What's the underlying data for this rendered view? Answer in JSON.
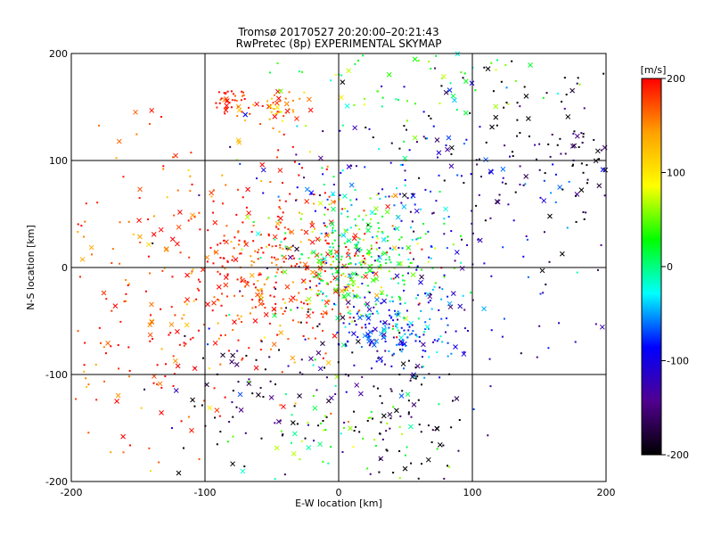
{
  "chart_data": {
    "type": "scatter",
    "title": "Tromsø 20170527 20:20:00–20:21:43",
    "subtitle": "RwPretec (8p) EXPERIMENTAL SKYMAP",
    "xlabel": "E-W location [km]",
    "ylabel": "N-S location [km]",
    "xlim": [
      -200,
      200
    ],
    "ylim": [
      -200,
      200
    ],
    "x_ticks": [
      "-200",
      "-100",
      "0",
      "100",
      "200"
    ],
    "y_ticks": [
      "-200",
      "-100",
      "0",
      "100",
      "200"
    ],
    "grid": true,
    "marker_types": [
      "dot",
      "x"
    ],
    "colorbar": {
      "label": "[m/s]",
      "range": [
        -200,
        200
      ],
      "ticks": [
        "200",
        "100",
        "0",
        "-100",
        "-200"
      ],
      "colormap": [
        "#ff0000",
        "#ffa000",
        "#ffff00",
        "#00ff00",
        "#00ffff",
        "#0000ff",
        "#500090",
        "#000000"
      ]
    },
    "clusters": [
      {
        "x": -40,
        "y": 0,
        "spread_x": 35,
        "spread_y": 35,
        "velocity": 190,
        "count": 320
      },
      {
        "x": 15,
        "y": 10,
        "spread_x": 30,
        "spread_y": 30,
        "velocity": 20,
        "count": 300
      },
      {
        "x": 40,
        "y": -60,
        "spread_x": 25,
        "spread_y": 20,
        "velocity": -80,
        "count": 180
      },
      {
        "x": -80,
        "y": 155,
        "spread_x": 8,
        "spread_y": 7,
        "velocity": 190,
        "count": 40
      },
      {
        "x": -45,
        "y": 148,
        "spread_x": 10,
        "spread_y": 8,
        "velocity": 150,
        "count": 45
      },
      {
        "x": 120,
        "y": 130,
        "spread_x": 60,
        "spread_y": 50,
        "velocity": -200,
        "count": 110
      },
      {
        "x": 180,
        "y": 85,
        "spread_x": 15,
        "spread_y": 20,
        "velocity": -200,
        "count": 30
      },
      {
        "x": -110,
        "y": 0,
        "spread_x": 60,
        "spread_y": 80,
        "velocity": 170,
        "count": 200
      },
      {
        "x": 50,
        "y": -140,
        "spread_x": 25,
        "spread_y": 30,
        "velocity": -200,
        "count": 80
      },
      {
        "x": -60,
        "y": -120,
        "spread_x": 40,
        "spread_y": 40,
        "velocity": -190,
        "count": 90
      },
      {
        "x": 60,
        "y": 60,
        "spread_x": 60,
        "spread_y": 50,
        "velocity": -90,
        "count": 150
      },
      {
        "x": 0,
        "y": -160,
        "spread_x": 40,
        "spread_y": 30,
        "velocity": 40,
        "count": 60
      },
      {
        "x": 100,
        "y": -20,
        "spread_x": 90,
        "spread_y": 60,
        "velocity": -130,
        "count": 100
      },
      {
        "x": -150,
        "y": -60,
        "spread_x": 40,
        "spread_y": 60,
        "velocity": 200,
        "count": 80
      },
      {
        "x": 60,
        "y": 170,
        "spread_x": 60,
        "spread_y": 25,
        "velocity": 30,
        "count": 70
      }
    ]
  }
}
